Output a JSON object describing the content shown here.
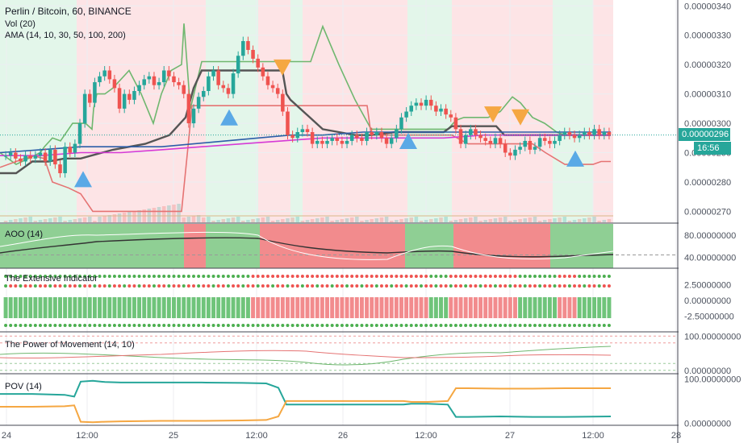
{
  "header": {
    "symbol_line": "Perlin / Bitcoin, 60, BINANCE",
    "vol_line": "Vol (20)",
    "ama_line": "AMA (14, 10, 30, 50, 100, 200)"
  },
  "panes": {
    "aoo_title": "AOO (14)",
    "ext_title": "The Extensive Indicator",
    "pom_title": "The Power of Movement (14, 10)",
    "pov_title": "POV (14)"
  },
  "price_tag": {
    "value": "0.00000296",
    "countdown": "16:56"
  },
  "colors": {
    "up": "#26a69a",
    "down": "#ef5350",
    "bg_up": "#e3f6ea",
    "bg_down": "#fde4e6",
    "ama_green": "#6fb76f",
    "ama_red": "#e57373",
    "ama_dark": "#555555",
    "ama_blue": "#2c5da8",
    "ama_magenta": "#d63ad6",
    "tri_blue": "#5aa9e6",
    "tri_orange": "#f5a742"
  },
  "chart_data": [
    {
      "type": "candlestick",
      "title": "Perlin / Bitcoin, 60, BINANCE",
      "ylim": [
        2.66e-06,
        3.42e-06
      ],
      "y_ticks": [
        "0.00000340",
        "0.00000330",
        "0.00000320",
        "0.00000310",
        "0.00000300",
        "0.00000290",
        "0.00000280",
        "0.00000270"
      ],
      "x_ticks": [
        "24",
        "12:00",
        "25",
        "12:00",
        "26",
        "12:00",
        "27",
        "12:00",
        "28"
      ],
      "last_price": 2.96e-06,
      "closes": [
        2.89e-06,
        2.9e-06,
        2.88e-06,
        2.87e-06,
        2.89e-06,
        2.88e-06,
        2.89e-06,
        2.9e-06,
        2.87e-06,
        2.91e-06,
        2.86e-06,
        2.83e-06,
        2.92e-06,
        2.9e-06,
        2.93e-06,
        3e-06,
        3.1e-06,
        3.07e-06,
        3.14e-06,
        3.16e-06,
        3.18e-06,
        3.15e-06,
        3.12e-06,
        3.05e-06,
        3.1e-06,
        3.08e-06,
        3.11e-06,
        3.13e-06,
        3.15e-06,
        3.16e-06,
        3.13e-06,
        3.14e-06,
        3.18e-06,
        3.16e-06,
        3.14e-06,
        3.13e-06,
        3.1e-06,
        3e-06,
        3.05e-06,
        3.09e-06,
        3.11e-06,
        3.16e-06,
        3.18e-06,
        3.13e-06,
        3.12e-06,
        3.1e-06,
        3.17e-06,
        3.23e-06,
        3.28e-06,
        3.25e-06,
        3.22e-06,
        3.19e-06,
        3.16e-06,
        3.13e-06,
        3.12e-06,
        3.1e-06,
        3.04e-06,
        2.96e-06,
        2.95e-06,
        2.97e-06,
        2.98e-06,
        2.97e-06,
        2.93e-06,
        2.94e-06,
        2.93e-06,
        2.94e-06,
        2.95e-06,
        2.94e-06,
        2.93e-06,
        2.94e-06,
        2.96e-06,
        2.95e-06,
        2.94e-06,
        2.97e-06,
        2.96e-06,
        2.97e-06,
        2.95e-06,
        2.93e-06,
        2.95e-06,
        2.98e-06,
        3.02e-06,
        3.04e-06,
        3.06e-06,
        3.07e-06,
        3.06e-06,
        3.08e-06,
        3.06e-06,
        3.04e-06,
        3.05e-06,
        3.03e-06,
        3.02e-06,
        2.98e-06,
        2.93e-06,
        2.96e-06,
        2.98e-06,
        2.96e-06,
        2.95e-06,
        2.94e-06,
        2.93e-06,
        2.95e-06,
        2.93e-06,
        2.9e-06,
        2.89e-06,
        2.91e-06,
        2.92e-06,
        2.94e-06,
        2.91e-06,
        2.92e-06,
        2.95e-06,
        2.94e-06,
        2.93e-06,
        2.94e-06,
        2.96e-06,
        2.97e-06,
        2.96e-06,
        2.95e-06,
        2.96e-06,
        2.97e-06,
        2.96e-06,
        2.98e-06,
        2.96e-06,
        2.97e-06,
        2.96e-06
      ],
      "series": [
        {
          "name": "AMA green",
          "color": "#6fb76f",
          "values": [
            [
              0,
              2.9e-06
            ],
            [
              20,
              2.86e-06
            ],
            [
              50,
              2.9e-06
            ],
            [
              55,
              2.92e-06
            ],
            [
              65,
              2.95e-06
            ],
            [
              75,
              2.94e-06
            ],
            [
              90,
              3e-06
            ],
            [
              100,
              3e-06
            ],
            [
              106,
              3e-06
            ],
            [
              114,
              2.98e-06
            ],
            [
              116,
              3.05e-06
            ],
            [
              120,
              3.1e-06
            ],
            [
              130,
              3.1e-06
            ],
            [
              140,
              3.12e-06
            ],
            [
              160,
              3.18e-06
            ],
            [
              175,
              3.1e-06
            ],
            [
              190,
              3e-06
            ],
            [
              200,
              3.1e-06
            ],
            [
              212,
              3.18e-06
            ],
            [
              225,
              3.2e-06
            ],
            [
              228,
              3.34e-06
            ],
            [
              236,
              3.05e-06
            ],
            [
              250,
              3.21e-06
            ],
            [
              270,
              3.21e-06
            ],
            [
              300,
              3.21e-06
            ],
            [
              330,
              3.21e-06
            ],
            [
              360,
              3.21e-06
            ],
            [
              385,
              3.21e-06
            ],
            [
              400,
              3.33e-06
            ],
            [
              420,
              3.2e-06
            ],
            [
              440,
              3.08e-06
            ],
            [
              460,
              2.98e-06
            ],
            [
              480,
              2.98e-06
            ],
            [
              520,
              2.98e-06
            ],
            [
              555,
              2.98e-06
            ],
            [
              565,
              3.01e-06
            ],
            [
              575,
              3.02e-06
            ],
            [
              590,
              3.02e-06
            ],
            [
              605,
              3.02e-06
            ],
            [
              620,
              3.04e-06
            ],
            [
              635,
              3.09e-06
            ],
            [
              645,
              3.07e-06
            ],
            [
              660,
              3.02e-06
            ],
            [
              675,
              3e-06
            ],
            [
              690,
              2.97e-06
            ],
            [
              700,
              2.96e-06
            ],
            [
              720,
              2.96e-06
            ],
            [
              740,
              2.96e-06
            ],
            [
              757,
              2.96e-06
            ]
          ]
        },
        {
          "name": "AMA red",
          "color": "#e57373",
          "values": [
            [
              0,
              2.85e-06
            ],
            [
              20,
              2.87e-06
            ],
            [
              40,
              2.89e-06
            ],
            [
              55,
              2.88e-06
            ],
            [
              65,
              2.8e-06
            ],
            [
              85,
              2.78e-06
            ],
            [
              100,
              2.76e-06
            ],
            [
              115,
              2.7e-06
            ],
            [
              120,
              2.7e-06
            ],
            [
              150,
              2.7e-06
            ],
            [
              175,
              2.7e-06
            ],
            [
              205,
              2.7e-06
            ],
            [
              225,
              2.7e-06
            ],
            [
              233,
              2.92e-06
            ],
            [
              238,
              3.06e-06
            ],
            [
              250,
              3.06e-06
            ],
            [
              300,
              3.06e-06
            ],
            [
              320,
              3.06e-06
            ],
            [
              340,
              3.06e-06
            ],
            [
              360,
              3.06e-06
            ],
            [
              380,
              3.06e-06
            ],
            [
              400,
              3.06e-06
            ],
            [
              430,
              3.06e-06
            ],
            [
              455,
              3.06e-06
            ],
            [
              460,
              2.96e-06
            ],
            [
              500,
              2.96e-06
            ],
            [
              530,
              2.96e-06
            ],
            [
              560,
              2.96e-06
            ],
            [
              580,
              2.93e-06
            ],
            [
              620,
              2.93e-06
            ],
            [
              650,
              2.93e-06
            ],
            [
              660,
              2.93e-06
            ],
            [
              676,
              2.9e-06
            ],
            [
              700,
              2.86e-06
            ],
            [
              735,
              2.86e-06
            ],
            [
              745,
              2.87e-06
            ],
            [
              757,
              2.87e-06
            ]
          ]
        },
        {
          "name": "AMA dark",
          "color": "#555555",
          "values": [
            [
              0,
              2.83e-06
            ],
            [
              20,
              2.83e-06
            ],
            [
              40,
              2.87e-06
            ],
            [
              60,
              2.87e-06
            ],
            [
              80,
              2.88e-06
            ],
            [
              100,
              2.88e-06
            ],
            [
              140,
              2.91e-06
            ],
            [
              180,
              2.93e-06
            ],
            [
              210,
              2.96e-06
            ],
            [
              230,
              3.02e-06
            ],
            [
              240,
              3.12e-06
            ],
            [
              250,
              3.18e-06
            ],
            [
              275,
              3.18e-06
            ],
            [
              300,
              3.18e-06
            ],
            [
              350,
              3.18e-06
            ],
            [
              355,
              3.1e-06
            ],
            [
              360,
              3.08e-06
            ],
            [
              380,
              3.03e-06
            ],
            [
              400,
              2.98e-06
            ],
            [
              420,
              2.97e-06
            ],
            [
              440,
              2.96e-06
            ],
            [
              460,
              2.96e-06
            ],
            [
              490,
              2.97e-06
            ],
            [
              520,
              2.97e-06
            ],
            [
              550,
              2.97e-06
            ],
            [
              560,
              2.99e-06
            ],
            [
              580,
              2.99e-06
            ],
            [
              605,
              2.99e-06
            ],
            [
              615,
              2.99e-06
            ],
            [
              625,
              2.96e-06
            ],
            [
              650,
              2.96e-06
            ],
            [
              700,
              2.96e-06
            ],
            [
              757,
              2.96e-06
            ]
          ]
        },
        {
          "name": "AMA blue",
          "color": "#2c5da8",
          "values": [
            [
              0,
              2.9e-06
            ],
            [
              50,
              2.91e-06
            ],
            [
              100,
              2.92e-06
            ],
            [
              150,
              2.92e-06
            ],
            [
              200,
              2.92e-06
            ],
            [
              240,
              2.93e-06
            ],
            [
              280,
              2.94e-06
            ],
            [
              320,
              2.95e-06
            ],
            [
              360,
              2.96e-06
            ],
            [
              400,
              2.96e-06
            ],
            [
              450,
              2.97e-06
            ],
            [
              500,
              2.97e-06
            ],
            [
              550,
              2.97e-06
            ],
            [
              600,
              2.97e-06
            ],
            [
              650,
              2.97e-06
            ],
            [
              700,
              2.97e-06
            ],
            [
              757,
              2.97e-06
            ]
          ]
        },
        {
          "name": "AMA magenta",
          "color": "#d63ad6",
          "values": [
            [
              0,
              2.89e-06
            ],
            [
              50,
              2.89e-06
            ],
            [
              100,
              2.9e-06
            ],
            [
              150,
              2.9e-06
            ],
            [
              200,
              2.91e-06
            ],
            [
              250,
              2.92e-06
            ],
            [
              300,
              2.93e-06
            ],
            [
              350,
              2.94e-06
            ],
            [
              400,
              2.95e-06
            ],
            [
              450,
              2.95e-06
            ],
            [
              500,
              2.95e-06
            ],
            [
              550,
              2.95e-06
            ],
            [
              600,
              2.96e-06
            ],
            [
              650,
              2.96e-06
            ],
            [
              700,
              2.96e-06
            ],
            [
              757,
              2.96e-06
            ]
          ]
        }
      ],
      "markers_up": [
        [
          103,
          2.81e-06
        ],
        [
          284,
          3.02e-06
        ],
        [
          506,
          2.94e-06
        ],
        [
          713,
          2.88e-06
        ]
      ],
      "markers_down": [
        [
          350,
          3.19e-06
        ],
        [
          611,
          3.03e-06
        ],
        [
          645,
          3.02e-06
        ]
      ]
    },
    {
      "type": "area",
      "title": "AOO (14)",
      "ylim": [
        20,
        100
      ],
      "y_ticks": [
        "80.00000000",
        "40.00000000"
      ],
      "dashed_level": 44
    },
    {
      "type": "heatmap",
      "title": "The Extensive Indicator",
      "ylim": [
        -5,
        5
      ],
      "y_ticks": [
        "2.50000000",
        "0.00000000",
        "-2.50000000"
      ]
    },
    {
      "type": "line",
      "title": "The Power of Movement (14, 10)",
      "ylim": [
        -10,
        110
      ],
      "y_ticks": [
        "100.00000000",
        "0.00000000"
      ]
    },
    {
      "type": "line",
      "title": "POV (14)",
      "ylim": [
        -5,
        110
      ],
      "y_ticks": [
        "100.00000000",
        "0.00000000"
      ],
      "series": [
        {
          "name": "POV teal",
          "color": "#26a69a",
          "values": [
            [
              0,
              66
            ],
            [
              40,
              66
            ],
            [
              80,
              64
            ],
            [
              92,
              60
            ],
            [
              100,
              94
            ],
            [
              115,
              96
            ],
            [
              130,
              93
            ],
            [
              150,
              92
            ],
            [
              200,
              92
            ],
            [
              250,
              92
            ],
            [
              300,
              91
            ],
            [
              330,
              90
            ],
            [
              345,
              80
            ],
            [
              355,
              42
            ],
            [
              400,
              42
            ],
            [
              450,
              42
            ],
            [
              500,
              42
            ],
            [
              510,
              44
            ],
            [
              530,
              44
            ],
            [
              555,
              42
            ],
            [
              565,
              14
            ],
            [
              580,
              14
            ],
            [
              620,
              15
            ],
            [
              660,
              14
            ],
            [
              700,
              14
            ],
            [
              757,
              15
            ]
          ]
        },
        {
          "name": "POV orange",
          "color": "#f5a742",
          "values": [
            [
              0,
              37
            ],
            [
              40,
              37
            ],
            [
              80,
              38
            ],
            [
              92,
              40
            ],
            [
              100,
              3
            ],
            [
              115,
              2
            ],
            [
              130,
              3
            ],
            [
              150,
              4
            ],
            [
              200,
              5
            ],
            [
              250,
              5
            ],
            [
              300,
              6
            ],
            [
              330,
              7
            ],
            [
              345,
              15
            ],
            [
              355,
              50
            ],
            [
              400,
              50
            ],
            [
              450,
              50
            ],
            [
              500,
              50
            ],
            [
              510,
              48
            ],
            [
              530,
              48
            ],
            [
              555,
              50
            ],
            [
              565,
              79
            ],
            [
              580,
              79
            ],
            [
              620,
              78
            ],
            [
              660,
              78
            ],
            [
              700,
              79
            ],
            [
              757,
              79
            ]
          ]
        }
      ]
    }
  ]
}
